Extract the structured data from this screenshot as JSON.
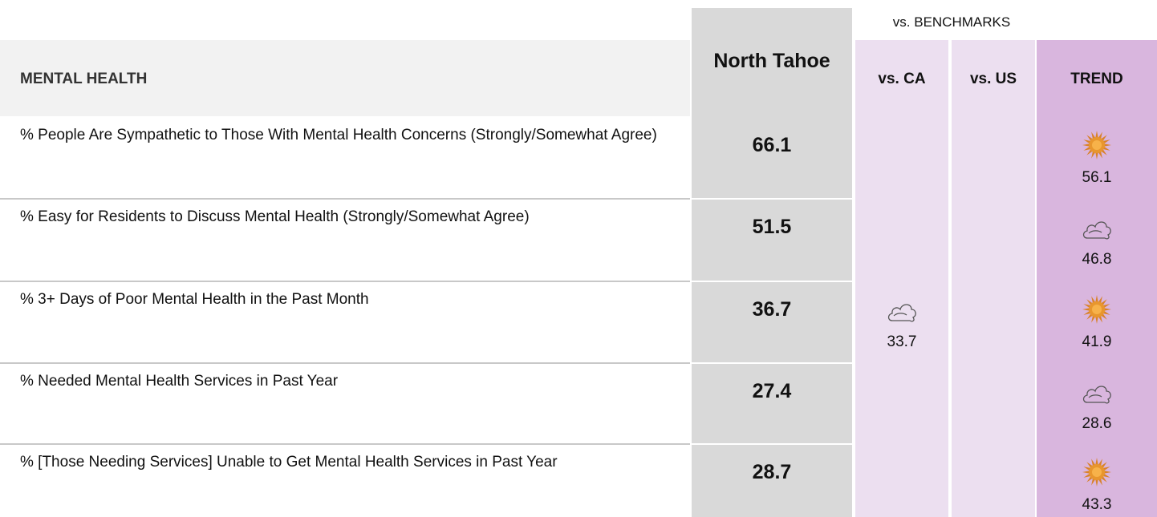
{
  "header": {
    "benchmarks_label": "vs. BENCHMARKS",
    "section": "MENTAL HEALTH",
    "area": "North Tahoe",
    "vs_ca": "vs. CA",
    "vs_us": "vs. US",
    "trend": "TREND"
  },
  "table": {
    "rows": [
      {
        "label": "% People Are Sympathetic to Those With Mental Health Concerns (Strongly/Somewhat Agree)",
        "value": "66.1",
        "vs_ca": null,
        "vs_us": null,
        "trend": {
          "icon": "sun",
          "value": "56.1"
        }
      },
      {
        "label": "% Easy for Residents to Discuss Mental Health (Strongly/Somewhat Agree)",
        "value": "51.5",
        "vs_ca": null,
        "vs_us": null,
        "trend": {
          "icon": "cloud",
          "value": "46.8"
        }
      },
      {
        "label": "% 3+ Days of Poor Mental Health in the Past Month",
        "value": "36.7",
        "vs_ca": {
          "icon": "cloud",
          "value": "33.7"
        },
        "vs_us": null,
        "trend": {
          "icon": "sun",
          "value": "41.9"
        }
      },
      {
        "label": "% Needed Mental Health Services in Past Year",
        "value": "27.4",
        "vs_ca": null,
        "vs_us": null,
        "trend": {
          "icon": "cloud",
          "value": "28.6"
        }
      },
      {
        "label": "% [Those Needing Services] Unable to Get Mental Health Services in Past Year",
        "value": "28.7",
        "vs_ca": null,
        "vs_us": null,
        "trend": {
          "icon": "sun",
          "value": "43.3"
        }
      }
    ]
  }
}
